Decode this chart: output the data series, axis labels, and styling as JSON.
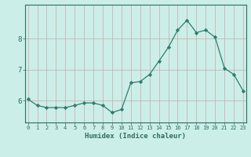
{
  "x": [
    0,
    1,
    2,
    3,
    4,
    5,
    6,
    7,
    8,
    9,
    10,
    11,
    12,
    13,
    14,
    15,
    16,
    17,
    18,
    19,
    20,
    21,
    22,
    23
  ],
  "y": [
    6.05,
    5.85,
    5.78,
    5.78,
    5.78,
    5.85,
    5.93,
    5.93,
    5.85,
    5.62,
    5.72,
    6.58,
    6.62,
    6.85,
    7.28,
    7.72,
    8.28,
    8.6,
    8.2,
    8.28,
    8.05,
    7.05,
    6.85,
    6.32
  ],
  "line_color": "#2e7d6e",
  "marker": "D",
  "marker_size": 2.2,
  "bg_color": "#cceee8",
  "grid_color": "#c8a8a8",
  "axis_color": "#2e6e60",
  "tick_color": "#2e6e60",
  "xlabel": "Humidex (Indice chaleur)",
  "yticks": [
    6,
    7,
    8
  ],
  "xticks": [
    0,
    1,
    2,
    3,
    4,
    5,
    6,
    7,
    8,
    9,
    10,
    11,
    12,
    13,
    14,
    15,
    16,
    17,
    18,
    19,
    20,
    21,
    22,
    23
  ],
  "ylim": [
    5.3,
    9.1
  ],
  "xlim": [
    -0.3,
    23.3
  ]
}
